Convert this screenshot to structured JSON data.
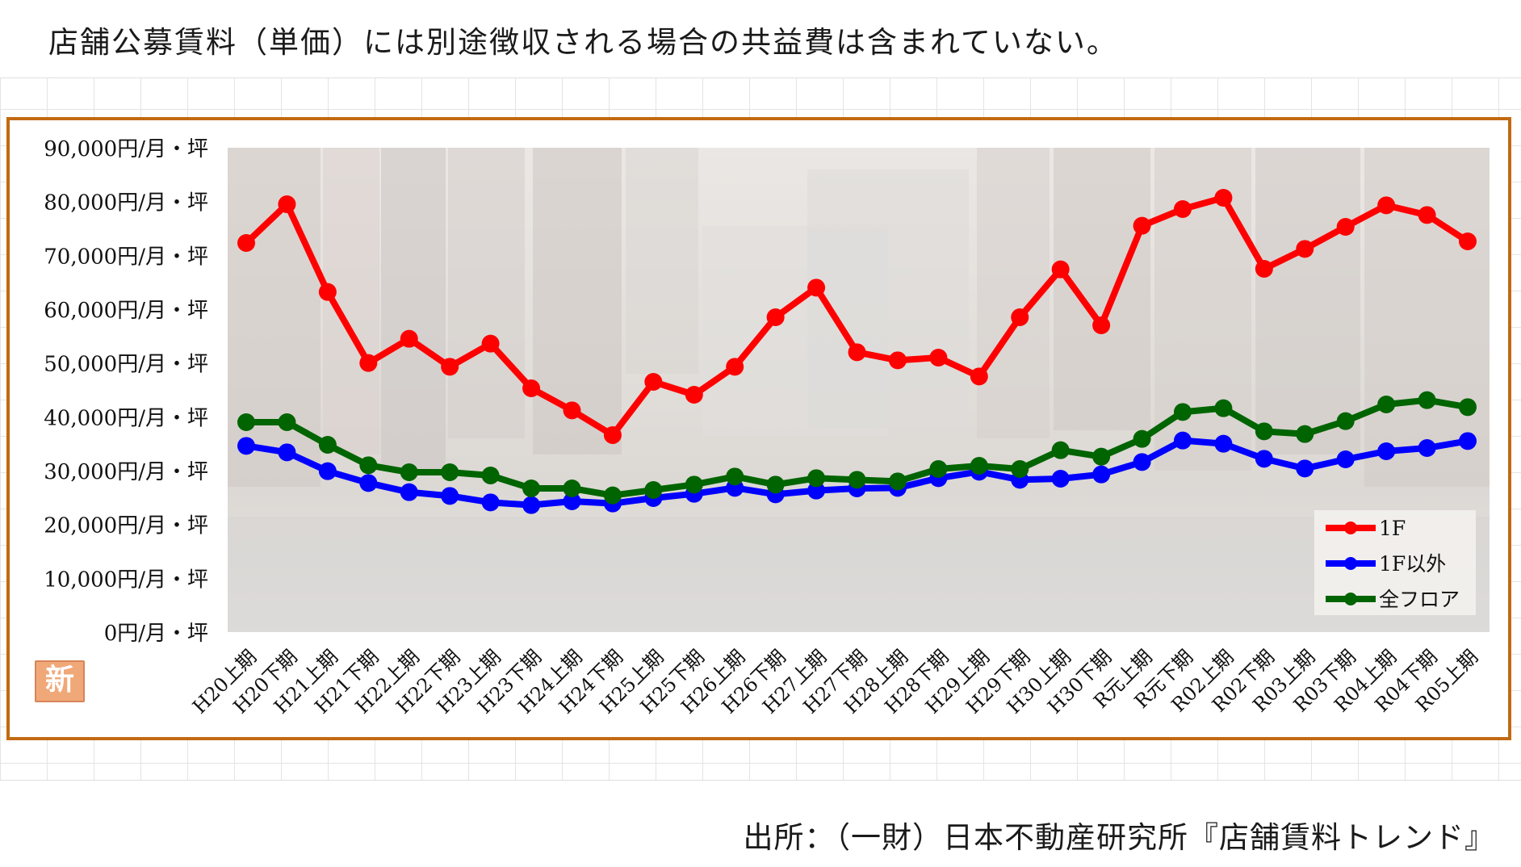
{
  "note": "店舗公募賃料（単価）には別途徴収される場合の共益費は含まれていない。",
  "source": "出所：（一財）日本不動産研究所『店舗賃料トレンド』",
  "colors": {
    "frame": "#c26a12",
    "series_1f": "#ff0000",
    "series_upper": "#0000ff",
    "series_all": "#006400"
  },
  "chart_data": {
    "type": "line",
    "yunit": "円/月・坪",
    "ylim": [
      0,
      90000
    ],
    "yticks": [
      0,
      10000,
      20000,
      30000,
      40000,
      50000,
      60000,
      70000,
      80000,
      90000
    ],
    "ytick_labels": [
      "0円/月・坪",
      "10,000円/月・坪",
      "20,000円/月・坪",
      "30,000円/月・坪",
      "40,000円/月・坪",
      "50,000円/月・坪",
      "60,000円/月・坪",
      "70,000円/月・坪",
      "80,000円/月・坪",
      "90,000円/月・坪"
    ],
    "categories": [
      "H20上期",
      "H20下期",
      "H21上期",
      "H21下期",
      "H22上期",
      "H22下期",
      "H23上期",
      "H23下期",
      "H24上期",
      "H24下期",
      "H25上期",
      "H25下期",
      "H26上期",
      "H26下期",
      "H27上期",
      "H27下期",
      "H28上期",
      "H28下期",
      "H29上期",
      "H29下期",
      "H30上期",
      "H30下期",
      "R元上期",
      "R元下期",
      "R02上期",
      "R02下期",
      "R03上期",
      "R03下期",
      "R04上期",
      "R04下期",
      "R05上期"
    ],
    "legend_position": "bottom-right",
    "grid": false,
    "series": [
      {
        "name": "1F",
        "color": "#ff0000",
        "values": [
          72300,
          79500,
          63200,
          50000,
          54500,
          49300,
          53600,
          45300,
          41200,
          36600,
          46500,
          44100,
          49300,
          58500,
          64000,
          52000,
          50500,
          51000,
          47500,
          58500,
          67400,
          57000,
          75500,
          78600,
          80700,
          67500,
          71200,
          75300,
          79300,
          77500,
          72600
        ]
      },
      {
        "name": "1F以外",
        "color": "#0000ff",
        "values": [
          34600,
          33400,
          29900,
          27700,
          26000,
          25300,
          24100,
          23600,
          24300,
          23900,
          24900,
          25700,
          26800,
          25600,
          26300,
          26700,
          26800,
          28600,
          29800,
          28300,
          28500,
          29300,
          31600,
          35600,
          35000,
          32200,
          30400,
          32100,
          33600,
          34200,
          35500
        ]
      },
      {
        "name": "全フロア",
        "color": "#006400",
        "values": [
          39000,
          39000,
          34800,
          31000,
          29700,
          29700,
          29100,
          26700,
          26700,
          25400,
          26400,
          27400,
          28900,
          27400,
          28600,
          28300,
          28000,
          30300,
          30900,
          30300,
          33800,
          32600,
          35900,
          40900,
          41600,
          37300,
          36800,
          39200,
          42300,
          43100,
          41800
        ]
      }
    ]
  }
}
